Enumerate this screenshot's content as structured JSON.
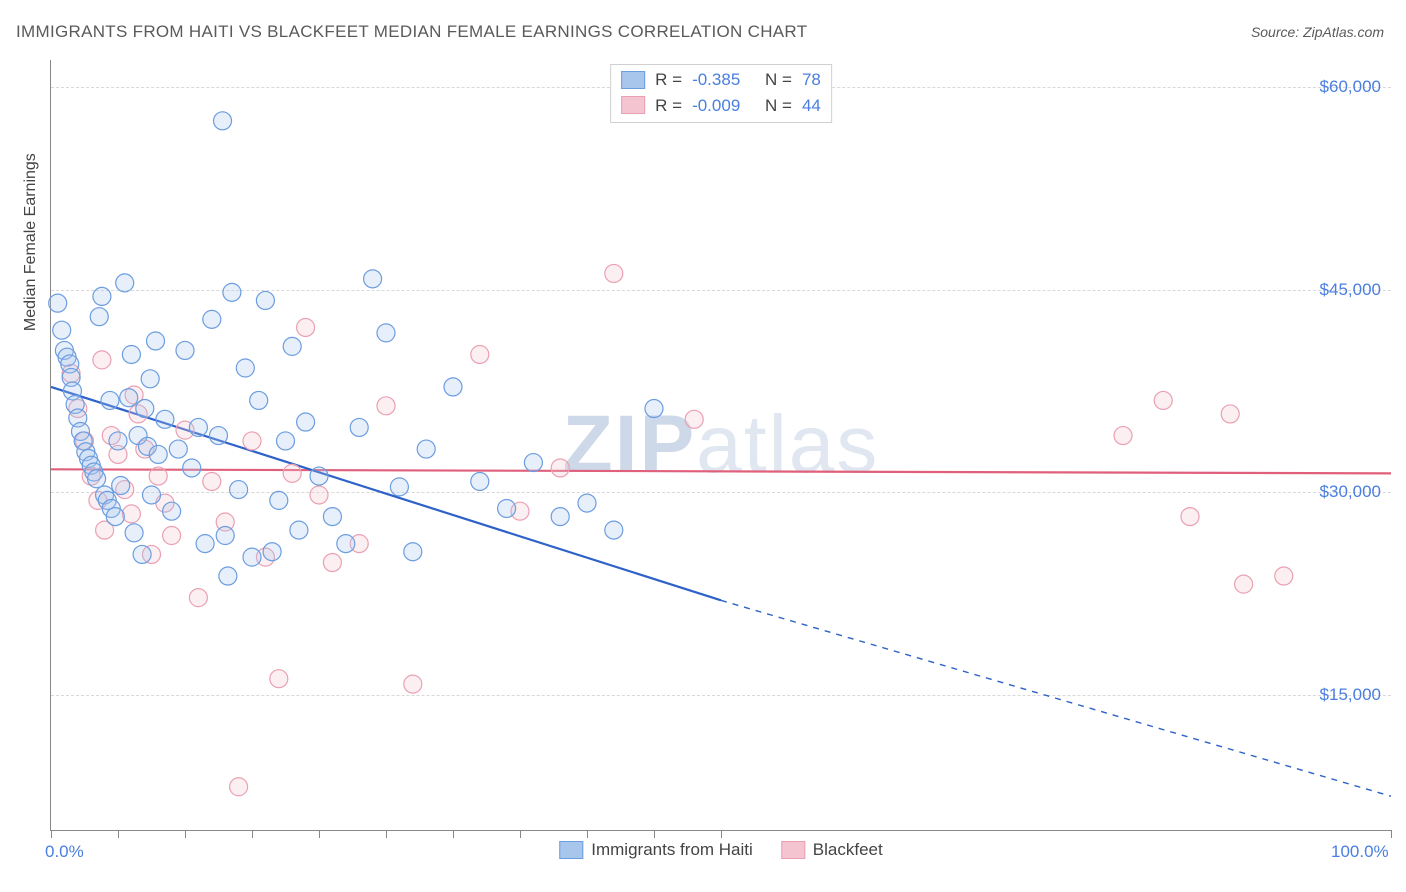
{
  "title": "IMMIGRANTS FROM HAITI VS BLACKFEET MEDIAN FEMALE EARNINGS CORRELATION CHART",
  "source_label": "Source: ZipAtlas.com",
  "yaxis_title": "Median Female Earnings",
  "watermark_bold": "ZIP",
  "watermark_light": "atlas",
  "chart": {
    "type": "scatter",
    "xlim": [
      0,
      100
    ],
    "ylim": [
      5000,
      62000
    ],
    "x_ticks_pct": [
      0,
      5,
      10,
      15,
      20,
      25,
      30,
      35,
      40,
      45,
      50,
      100
    ],
    "x_labels": [
      {
        "pct": 0,
        "text": "0.0%"
      },
      {
        "pct": 100,
        "text": "100.0%"
      }
    ],
    "y_gridlines": [
      15000,
      30000,
      45000,
      60000
    ],
    "y_labels": [
      {
        "v": 15000,
        "text": "$15,000"
      },
      {
        "v": 30000,
        "text": "$30,000"
      },
      {
        "v": 45000,
        "text": "$45,000"
      },
      {
        "v": 60000,
        "text": "$60,000"
      }
    ],
    "background_color": "#ffffff",
    "grid_color": "#d8d8d8",
    "axis_color": "#888888",
    "marker_radius": 9,
    "marker_stroke_width": 1.2,
    "marker_fill_opacity": 0.28,
    "line_width": 2.2
  },
  "series": {
    "haiti": {
      "label": "Immigrants from Haiti",
      "color_stroke": "#6b9de0",
      "color_fill": "#a8c5ec",
      "trend_color": "#2e62c9",
      "R": "-0.385",
      "N": "78",
      "trend": {
        "x1": 0,
        "y1": 37800,
        "x2_solid": 50,
        "y2_solid": 22000,
        "x2": 100,
        "y2": 7500
      },
      "points": [
        [
          0.5,
          44000
        ],
        [
          0.8,
          42000
        ],
        [
          1.0,
          40500
        ],
        [
          1.2,
          40000
        ],
        [
          1.4,
          39500
        ],
        [
          1.5,
          38500
        ],
        [
          1.6,
          37500
        ],
        [
          1.8,
          36500
        ],
        [
          2.0,
          35500
        ],
        [
          2.2,
          34500
        ],
        [
          2.4,
          33800
        ],
        [
          2.6,
          33000
        ],
        [
          2.8,
          32500
        ],
        [
          3.0,
          32000
        ],
        [
          3.2,
          31500
        ],
        [
          3.4,
          31000
        ],
        [
          3.6,
          43000
        ],
        [
          3.8,
          44500
        ],
        [
          4.0,
          29800
        ],
        [
          4.2,
          29400
        ],
        [
          4.5,
          28800
        ],
        [
          4.8,
          28200
        ],
        [
          5.0,
          33800
        ],
        [
          5.2,
          30500
        ],
        [
          5.5,
          45500
        ],
        [
          5.8,
          37000
        ],
        [
          6.0,
          40200
        ],
        [
          6.2,
          27000
        ],
        [
          6.5,
          34200
        ],
        [
          6.8,
          25400
        ],
        [
          7.0,
          36200
        ],
        [
          7.2,
          33400
        ],
        [
          7.5,
          29800
        ],
        [
          7.8,
          41200
        ],
        [
          8.0,
          32800
        ],
        [
          8.5,
          35400
        ],
        [
          9.0,
          28600
        ],
        [
          9.5,
          33200
        ],
        [
          10.0,
          40500
        ],
        [
          10.5,
          31800
        ],
        [
          11.0,
          34800
        ],
        [
          11.5,
          26200
        ],
        [
          12.0,
          42800
        ],
        [
          12.5,
          34200
        ],
        [
          13.0,
          26800
        ],
        [
          13.5,
          44800
        ],
        [
          14.0,
          30200
        ],
        [
          14.5,
          39200
        ],
        [
          15.0,
          25200
        ],
        [
          15.5,
          36800
        ],
        [
          16.0,
          44200
        ],
        [
          16.5,
          25600
        ],
        [
          17.0,
          29400
        ],
        [
          17.5,
          33800
        ],
        [
          18.0,
          40800
        ],
        [
          18.5,
          27200
        ],
        [
          19.0,
          35200
        ],
        [
          20.0,
          31200
        ],
        [
          21.0,
          28200
        ],
        [
          22.0,
          26200
        ],
        [
          23.0,
          34800
        ],
        [
          24.0,
          45800
        ],
        [
          25.0,
          41800
        ],
        [
          26.0,
          30400
        ],
        [
          27.0,
          25600
        ],
        [
          12.8,
          57500
        ],
        [
          13.2,
          23800
        ],
        [
          28.0,
          33200
        ],
        [
          30.0,
          37800
        ],
        [
          32.0,
          30800
        ],
        [
          34.0,
          28800
        ],
        [
          36.0,
          32200
        ],
        [
          38.0,
          28200
        ],
        [
          40.0,
          29200
        ],
        [
          42.0,
          27200
        ],
        [
          45.0,
          36200
        ],
        [
          7.4,
          38400
        ],
        [
          4.4,
          36800
        ]
      ]
    },
    "blackfeet": {
      "label": "Blackfeet",
      "color_stroke": "#eaa0b2",
      "color_fill": "#f4c4d0",
      "trend_color": "#e0607c",
      "R": "-0.009",
      "N": "44",
      "trend": {
        "x1": 0,
        "y1": 31700,
        "x2_solid": 100,
        "y2_solid": 31400,
        "x2": 100,
        "y2": 31400
      },
      "points": [
        [
          1.5,
          38800
        ],
        [
          2.0,
          36200
        ],
        [
          2.5,
          33800
        ],
        [
          3.0,
          31200
        ],
        [
          3.5,
          29400
        ],
        [
          4.0,
          27200
        ],
        [
          4.5,
          34200
        ],
        [
          5.0,
          32800
        ],
        [
          5.5,
          30200
        ],
        [
          6.0,
          28400
        ],
        [
          6.5,
          35800
        ],
        [
          7.0,
          33200
        ],
        [
          7.5,
          25400
        ],
        [
          8.0,
          31200
        ],
        [
          8.5,
          29200
        ],
        [
          9.0,
          26800
        ],
        [
          10.0,
          34600
        ],
        [
          11.0,
          22200
        ],
        [
          12.0,
          30800
        ],
        [
          13.0,
          27800
        ],
        [
          14.0,
          8200
        ],
        [
          15.0,
          33800
        ],
        [
          16.0,
          25200
        ],
        [
          17.0,
          16200
        ],
        [
          18.0,
          31400
        ],
        [
          19.0,
          42200
        ],
        [
          20.0,
          29800
        ],
        [
          21.0,
          24800
        ],
        [
          23.0,
          26200
        ],
        [
          25.0,
          36400
        ],
        [
          27.0,
          15800
        ],
        [
          32.0,
          40200
        ],
        [
          35.0,
          28600
        ],
        [
          38.0,
          31800
        ],
        [
          42.0,
          46200
        ],
        [
          48.0,
          35400
        ],
        [
          83.0,
          36800
        ],
        [
          85.0,
          28200
        ],
        [
          88.0,
          35800
        ],
        [
          89.0,
          23200
        ],
        [
          92.0,
          23800
        ],
        [
          80.0,
          34200
        ],
        [
          6.2,
          37200
        ],
        [
          3.8,
          39800
        ]
      ]
    }
  },
  "legend_stats": {
    "r_label": "R =",
    "n_label": "N ="
  }
}
